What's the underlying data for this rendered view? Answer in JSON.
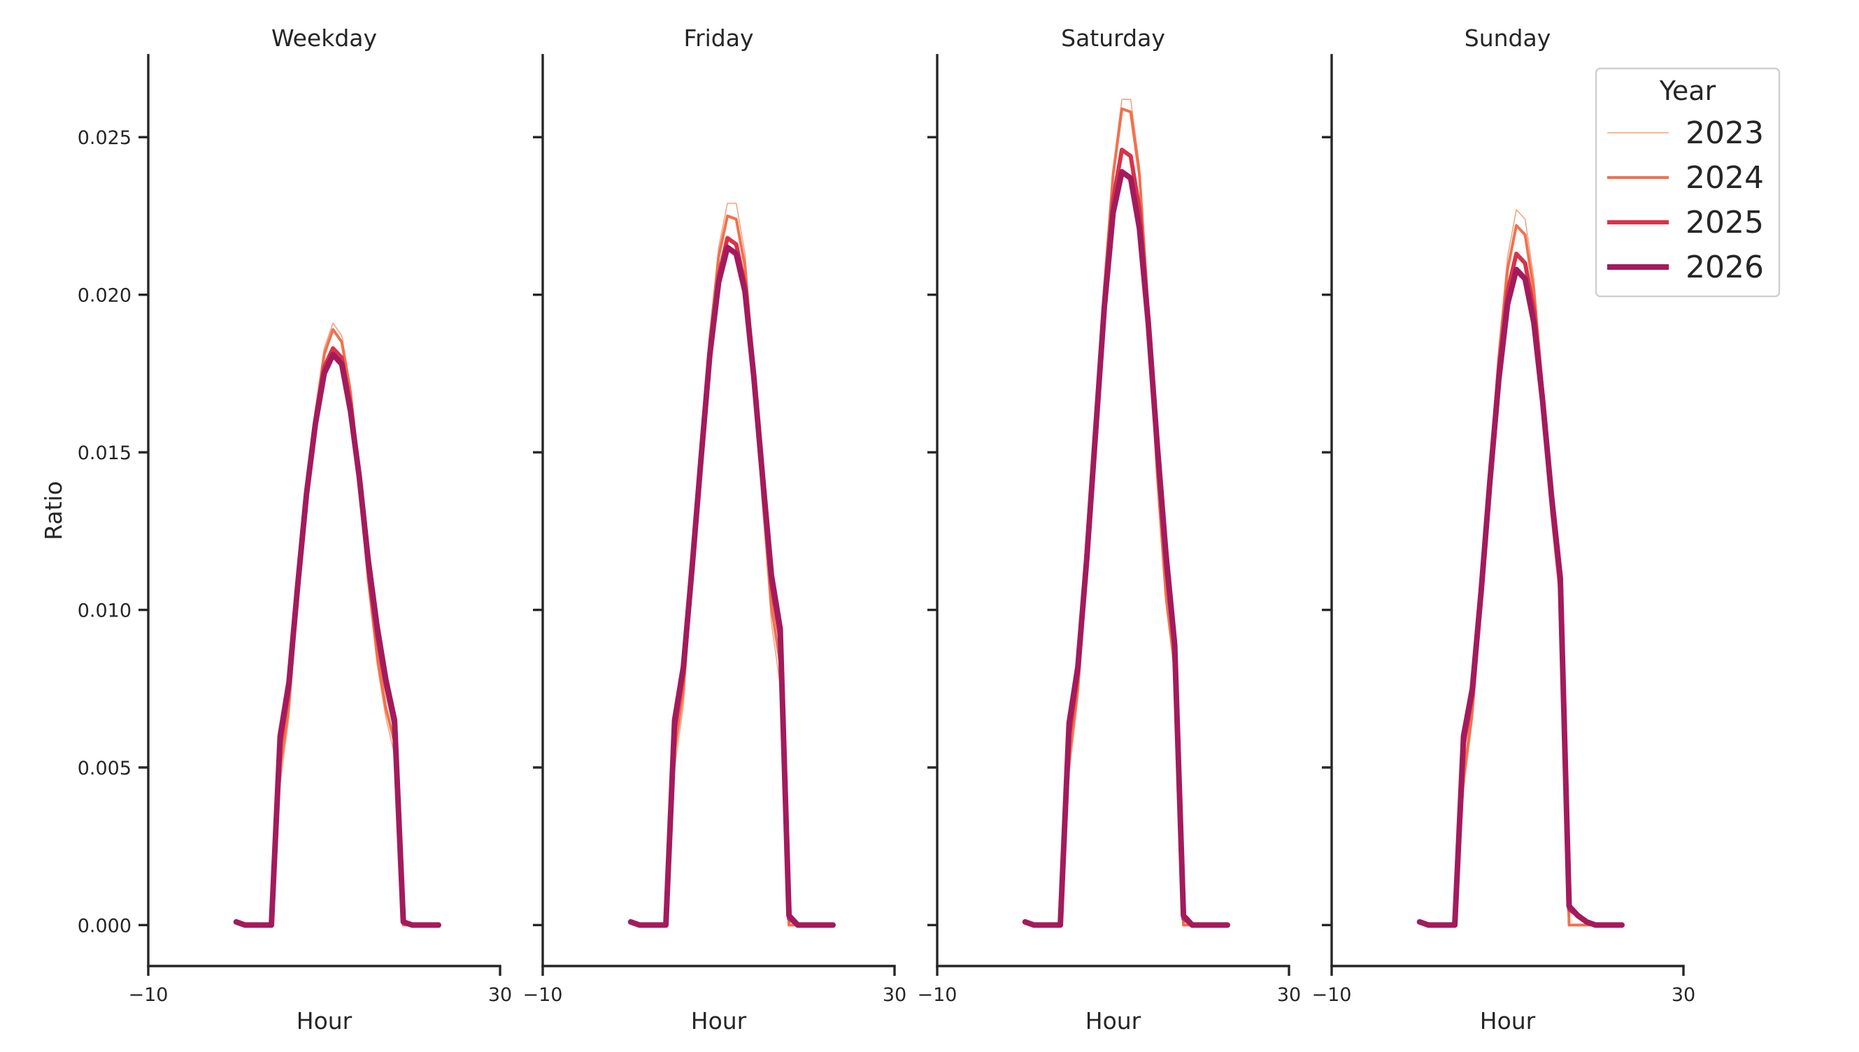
{
  "chart_data": {
    "type": "line",
    "ylabel": "Ratio",
    "xlabel": "Hour",
    "xlim": [
      -10,
      30
    ],
    "xticks": [
      -10,
      30
    ],
    "xtick_labels": [
      "−10",
      "30"
    ],
    "ylim": [
      -0.0013,
      0.0276
    ],
    "yticks": [
      0.0,
      0.005,
      0.01,
      0.015,
      0.02,
      0.025
    ],
    "ytick_labels": [
      "0.000",
      "0.005",
      "0.010",
      "0.015",
      "0.020",
      "0.025"
    ],
    "legend": {
      "title": "Year",
      "position": "upper right of last panel"
    },
    "series_styles": [
      {
        "name": "2023",
        "color": "#f5a079",
        "width": 1.5
      },
      {
        "name": "2024",
        "color": "#f0714e",
        "width": 4
      },
      {
        "name": "2025",
        "color": "#d7334a",
        "width": 6
      },
      {
        "name": "2026",
        "color": "#a31b5c",
        "width": 8
      }
    ],
    "x": [
      0,
      1,
      2,
      3,
      4,
      5,
      6,
      7,
      8,
      9,
      10,
      11,
      12,
      13,
      14,
      15,
      16,
      17,
      18,
      19,
      20,
      21,
      22,
      23
    ],
    "panels": [
      {
        "title": "Weekday",
        "series": [
          {
            "name": "2023",
            "values": [
              0.0001,
              0.0,
              0.0,
              0.0,
              0.0,
              0.0045,
              0.0066,
              0.0103,
              0.0136,
              0.0163,
              0.0183,
              0.0191,
              0.0187,
              0.0171,
              0.0144,
              0.011,
              0.0083,
              0.0066,
              0.0054,
              0.0,
              0.0,
              0.0,
              0.0,
              0.0
            ]
          },
          {
            "name": "2024",
            "values": [
              0.0001,
              0.0,
              0.0,
              0.0,
              0.0,
              0.005,
              0.007,
              0.0105,
              0.0137,
              0.0162,
              0.0181,
              0.0189,
              0.0185,
              0.0169,
              0.0143,
              0.011,
              0.0086,
              0.0069,
              0.0058,
              0.0,
              0.0,
              0.0,
              0.0,
              0.0
            ]
          },
          {
            "name": "2025",
            "values": [
              0.0001,
              0.0,
              0.0,
              0.0,
              0.0,
              0.0057,
              0.0075,
              0.0107,
              0.0137,
              0.016,
              0.0177,
              0.0183,
              0.018,
              0.0165,
              0.0141,
              0.0113,
              0.0092,
              0.0076,
              0.0063,
              0.0001,
              0.0,
              0.0,
              0.0,
              0.0
            ]
          },
          {
            "name": "2026",
            "values": [
              0.0001,
              0.0,
              0.0,
              0.0,
              0.0,
              0.006,
              0.0077,
              0.0108,
              0.0137,
              0.0159,
              0.0175,
              0.0181,
              0.0178,
              0.0163,
              0.0142,
              0.0116,
              0.0095,
              0.0078,
              0.0065,
              0.0001,
              0.0,
              0.0,
              0.0,
              0.0
            ]
          }
        ]
      },
      {
        "title": "Friday",
        "series": [
          {
            "name": "2023",
            "values": [
              0.0001,
              0.0,
              0.0,
              0.0,
              0.0,
              0.005,
              0.007,
              0.011,
              0.015,
              0.0188,
              0.0215,
              0.0229,
              0.0229,
              0.0213,
              0.0177,
              0.0134,
              0.0096,
              0.0076,
              0.0,
              0.0,
              0.0,
              0.0,
              0.0,
              0.0
            ]
          },
          {
            "name": "2024",
            "values": [
              0.0001,
              0.0,
              0.0,
              0.0,
              0.0,
              0.0055,
              0.0075,
              0.0112,
              0.015,
              0.0186,
              0.0212,
              0.0225,
              0.0224,
              0.0209,
              0.0176,
              0.0136,
              0.0101,
              0.0083,
              0.0,
              0.0,
              0.0,
              0.0,
              0.0,
              0.0
            ]
          },
          {
            "name": "2025",
            "values": [
              0.0001,
              0.0,
              0.0,
              0.0,
              0.0,
              0.0062,
              0.008,
              0.0113,
              0.0149,
              0.0182,
              0.0206,
              0.0218,
              0.0216,
              0.0203,
              0.0174,
              0.014,
              0.0108,
              0.0091,
              0.0002,
              0.0,
              0.0,
              0.0,
              0.0,
              0.0
            ]
          },
          {
            "name": "2026",
            "values": [
              0.0001,
              0.0,
              0.0,
              0.0,
              0.0,
              0.0065,
              0.0082,
              0.0114,
              0.0148,
              0.0181,
              0.0204,
              0.0215,
              0.0213,
              0.0201,
              0.0174,
              0.0142,
              0.0111,
              0.0094,
              0.0003,
              0.0,
              0.0,
              0.0,
              0.0,
              0.0
            ]
          }
        ]
      },
      {
        "title": "Saturday",
        "series": [
          {
            "name": "2023",
            "values": [
              0.0001,
              0.0,
              0.0,
              0.0,
              0.0,
              0.0048,
              0.0072,
              0.0112,
              0.0158,
              0.0203,
              0.024,
              0.0262,
              0.0262,
              0.0241,
              0.0196,
              0.0143,
              0.0102,
              0.0079,
              0.0,
              0.0,
              0.0,
              0.0,
              0.0,
              0.0
            ]
          },
          {
            "name": "2024",
            "values": [
              0.0001,
              0.0,
              0.0,
              0.0,
              0.0,
              0.0053,
              0.0075,
              0.0113,
              0.0158,
              0.0202,
              0.0238,
              0.0259,
              0.0258,
              0.0238,
              0.0195,
              0.0144,
              0.0105,
              0.0083,
              0.0,
              0.0,
              0.0,
              0.0,
              0.0,
              0.0
            ]
          },
          {
            "name": "2025",
            "values": [
              0.0001,
              0.0,
              0.0,
              0.0,
              0.0,
              0.006,
              0.008,
              0.0115,
              0.0157,
              0.0198,
              0.023,
              0.0246,
              0.0244,
              0.0227,
              0.0193,
              0.0151,
              0.0114,
              0.0088,
              0.0002,
              0.0,
              0.0,
              0.0,
              0.0,
              0.0
            ]
          },
          {
            "name": "2026",
            "values": [
              0.0001,
              0.0,
              0.0,
              0.0,
              0.0,
              0.0064,
              0.0082,
              0.0116,
              0.0156,
              0.0196,
              0.0226,
              0.0239,
              0.0237,
              0.0221,
              0.0191,
              0.0153,
              0.0118,
              0.0089,
              0.0003,
              0.0,
              0.0,
              0.0,
              0.0,
              0.0
            ]
          }
        ]
      },
      {
        "title": "Sunday",
        "series": [
          {
            "name": "2023",
            "values": [
              0.0001,
              0.0,
              0.0,
              0.0,
              0.0,
              0.0043,
              0.0065,
              0.01,
              0.0143,
              0.0183,
              0.0212,
              0.0227,
              0.0224,
              0.0205,
              0.0172,
              0.0131,
              0.0101,
              0.0,
              0.0,
              0.0,
              0.0,
              0.0,
              0.0,
              0.0
            ]
          },
          {
            "name": "2024",
            "values": [
              0.0001,
              0.0,
              0.0,
              0.0,
              0.0,
              0.0047,
              0.0068,
              0.0102,
              0.0143,
              0.018,
              0.0208,
              0.0222,
              0.0219,
              0.0201,
              0.017,
              0.0131,
              0.0104,
              0.0,
              0.0,
              0.0,
              0.0,
              0.0,
              0.0,
              0.0
            ]
          },
          {
            "name": "2025",
            "values": [
              0.0001,
              0.0,
              0.0,
              0.0,
              0.0,
              0.0057,
              0.0073,
              0.0105,
              0.0142,
              0.0176,
              0.0201,
              0.0213,
              0.021,
              0.0195,
              0.0168,
              0.0134,
              0.0108,
              0.0005,
              0.0003,
              0.0001,
              0.0,
              0.0,
              0.0,
              0.0
            ]
          },
          {
            "name": "2026",
            "values": [
              0.0001,
              0.0,
              0.0,
              0.0,
              0.0,
              0.006,
              0.0075,
              0.0106,
              0.0141,
              0.0173,
              0.0197,
              0.0208,
              0.0205,
              0.0191,
              0.0166,
              0.0136,
              0.011,
              0.0006,
              0.0003,
              0.0001,
              0.0,
              0.0,
              0.0,
              0.0
            ]
          }
        ]
      }
    ]
  }
}
